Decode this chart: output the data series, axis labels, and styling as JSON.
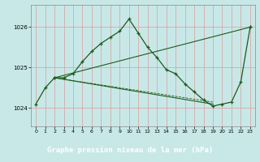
{
  "title": "Graphe pression niveau de la mer (hPa)",
  "plot_bg": "#c8e8e8",
  "label_bg": "#4a8a6a",
  "grid_color": "#d8a8a8",
  "line_color": "#1a5c1a",
  "xlim": [
    -0.5,
    23.5
  ],
  "ylim": [
    1023.55,
    1026.55
  ],
  "yticks": [
    1024,
    1025,
    1026
  ],
  "xticks": [
    0,
    1,
    2,
    3,
    4,
    5,
    6,
    7,
    8,
    9,
    10,
    11,
    12,
    13,
    14,
    15,
    16,
    17,
    18,
    19,
    20,
    21,
    22,
    23
  ],
  "line1_x": [
    0,
    1,
    2,
    3,
    4,
    5,
    6,
    7,
    8,
    9,
    10,
    11,
    12,
    13,
    14,
    15,
    16,
    17,
    18,
    19,
    20,
    21,
    22,
    23
  ],
  "line1_y": [
    1024.1,
    1024.5,
    1024.75,
    1024.75,
    1024.85,
    1025.15,
    1025.4,
    1025.6,
    1025.75,
    1025.9,
    1026.2,
    1025.85,
    1025.5,
    1025.25,
    1024.95,
    1024.85,
    1024.6,
    1024.4,
    1024.2,
    1024.05,
    1024.1,
    1024.15,
    1024.65,
    1026.0
  ],
  "line2_x": [
    2,
    23
  ],
  "line2_y": [
    1024.75,
    1026.0
  ],
  "line3_x": [
    2,
    19
  ],
  "line3_y": [
    1024.75,
    1024.1
  ],
  "line4_x": [
    2,
    19
  ],
  "line4_y": [
    1024.75,
    1024.15
  ]
}
